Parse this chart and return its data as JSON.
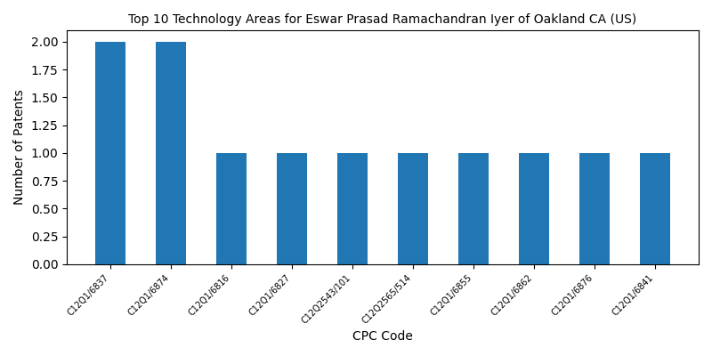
{
  "title": "Top 10 Technology Areas for Eswar Prasad Ramachandran Iyer of Oakland CA (US)",
  "xlabel": "CPC Code",
  "ylabel": "Number of Patents",
  "categories": [
    "C12Q1/6837",
    "C12Q1/6874",
    "C12Q1/6816",
    "C12Q1/6827",
    "C12Q2543/101",
    "C12Q2565/514",
    "C12Q1/6855",
    "C12Q1/6862",
    "C12Q1/6876",
    "C12Q1/6841"
  ],
  "values": [
    2,
    2,
    1,
    1,
    1,
    1,
    1,
    1,
    1,
    1
  ],
  "bar_color": "#2077b4",
  "bar_width": 0.5,
  "ylim": [
    0,
    2.1
  ],
  "figsize": [
    8.0,
    4.0
  ],
  "dpi": 100,
  "title_fontsize": 10,
  "label_fontsize": 10,
  "tick_fontsize": 7
}
